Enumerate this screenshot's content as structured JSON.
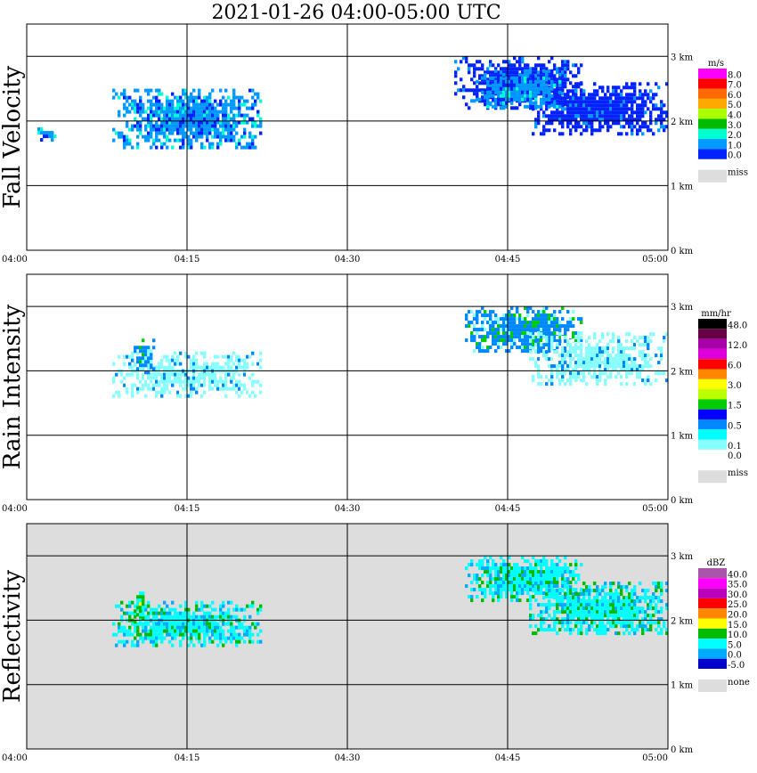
{
  "title": "2021-01-26   04:00-05:00 UTC",
  "chart_data": [
    {
      "type": "heatmap",
      "ylabel": "Fall Velocity",
      "x_ticks": [
        "04:00",
        "04:15",
        "04:30",
        "04:45",
        "05:00"
      ],
      "y_ticks": [
        "0 km",
        "1 km",
        "2 km",
        "3 km"
      ],
      "ylim": [
        0,
        3.5
      ],
      "xlim": [
        "04:00",
        "05:00"
      ],
      "grid": true,
      "colorbar": {
        "unit": "m/s",
        "levels": [
          {
            "label": "8.0",
            "color": "#ff00ff"
          },
          {
            "label": "7.0",
            "color": "#ff0000"
          },
          {
            "label": "6.0",
            "color": "#ff6a00"
          },
          {
            "label": "5.0",
            "color": "#ffaa00"
          },
          {
            "label": "4.0",
            "color": "#aaff00"
          },
          {
            "label": "3.0",
            "color": "#00bb00"
          },
          {
            "label": "2.0",
            "color": "#00ffd0"
          },
          {
            "label": "1.0",
            "color": "#0099ff"
          },
          {
            "label": "0.0",
            "color": "#0022ff"
          }
        ],
        "missing_label": "miss",
        "missing_color": "#dddddd"
      },
      "background": "#ffffff",
      "regions": [
        {
          "t_start": "04:08",
          "t_end": "04:22",
          "z_low": 1.6,
          "z_high": 2.5,
          "value": 1.5
        },
        {
          "t_start": "04:01",
          "t_end": "04:03",
          "z_low": 1.7,
          "z_high": 1.9,
          "value": 1.5
        },
        {
          "t_start": "04:40",
          "t_end": "04:52",
          "z_low": 2.2,
          "z_high": 3.0,
          "value": 0.5
        },
        {
          "t_start": "04:47",
          "t_end": "05:00",
          "z_low": 1.8,
          "z_high": 2.6,
          "value": 0.5
        },
        {
          "t_start": "04:42",
          "t_end": "04:50",
          "z_low": 2.2,
          "z_high": 2.8,
          "value": 1.5
        }
      ]
    },
    {
      "type": "heatmap",
      "ylabel": "Rain Intensity",
      "x_ticks": [
        "04:00",
        "04:15",
        "04:30",
        "04:45",
        "05:00"
      ],
      "y_ticks": [
        "0 km",
        "1 km",
        "2 km",
        "3 km"
      ],
      "ylim": [
        0,
        3.5
      ],
      "xlim": [
        "04:00",
        "05:00"
      ],
      "grid": true,
      "colorbar": {
        "unit": "mm/hr",
        "levels": [
          {
            "label": "48.0",
            "color": "#000000"
          },
          {
            "label": "",
            "color": "#660044"
          },
          {
            "label": "12.0",
            "color": "#aa00aa"
          },
          {
            "label": "",
            "color": "#dd00dd"
          },
          {
            "label": "6.0",
            "color": "#ff0000"
          },
          {
            "label": "",
            "color": "#ff8800"
          },
          {
            "label": "3.0",
            "color": "#ffff00"
          },
          {
            "label": "",
            "color": "#bbff00"
          },
          {
            "label": "1.5",
            "color": "#00cc00"
          },
          {
            "label": "",
            "color": "#0000ff"
          },
          {
            "label": "0.5",
            "color": "#0088ff"
          },
          {
            "label": "",
            "color": "#00ffff"
          },
          {
            "label": "0.1",
            "color": "#88ffff"
          },
          {
            "label": "0.0",
            "color": "#ffffff"
          }
        ],
        "missing_label": "miss",
        "missing_color": "#dddddd"
      },
      "background": "#ffffff",
      "regions": [
        {
          "t_start": "04:08",
          "t_end": "04:22",
          "z_low": 1.6,
          "z_high": 2.3,
          "value": 0.1
        },
        {
          "t_start": "04:10",
          "t_end": "04:12",
          "z_low": 2.0,
          "z_high": 2.5,
          "value": 0.5
        },
        {
          "t_start": "04:41",
          "t_end": "04:52",
          "z_low": 2.3,
          "z_high": 3.0,
          "value": 0.5
        },
        {
          "t_start": "04:47",
          "t_end": "05:00",
          "z_low": 1.8,
          "z_high": 2.6,
          "value": 0.1
        }
      ]
    },
    {
      "type": "heatmap",
      "ylabel": "Reflectivity",
      "x_ticks": [
        "04:00",
        "04:15",
        "04:30",
        "04:45",
        "05:00"
      ],
      "y_ticks": [
        "0 km",
        "1 km",
        "2 km",
        "3 km"
      ],
      "ylim": [
        0,
        3.5
      ],
      "xlim": [
        "04:00",
        "05:00"
      ],
      "grid": true,
      "colorbar": {
        "unit": "dBZ",
        "levels": [
          {
            "label": "40.0",
            "color": "#aa55aa"
          },
          {
            "label": "35.0",
            "color": "#ff00ff"
          },
          {
            "label": "30.0",
            "color": "#bb00bb"
          },
          {
            "label": "25.0",
            "color": "#ff0000"
          },
          {
            "label": "20.0",
            "color": "#ff8800"
          },
          {
            "label": "15.0",
            "color": "#ffff00"
          },
          {
            "label": "10.0",
            "color": "#00bb00"
          },
          {
            "label": "5.0",
            "color": "#00ffff"
          },
          {
            "label": "0.0",
            "color": "#00aaff"
          },
          {
            "label": "-5.0",
            "color": "#0000cc"
          }
        ],
        "missing_label": "none",
        "missing_color": "#dddddd"
      },
      "background": "#dddddd",
      "regions": [
        {
          "t_start": "04:08",
          "t_end": "04:22",
          "z_low": 1.6,
          "z_high": 2.3,
          "value": 5.0
        },
        {
          "t_start": "04:10",
          "t_end": "04:11",
          "z_low": 2.0,
          "z_high": 2.5,
          "value": 10.0
        },
        {
          "t_start": "04:41",
          "t_end": "04:52",
          "z_low": 2.3,
          "z_high": 3.0,
          "value": 5.0
        },
        {
          "t_start": "04:47",
          "t_end": "05:00",
          "z_low": 1.8,
          "z_high": 2.6,
          "value": 5.0
        }
      ]
    }
  ]
}
